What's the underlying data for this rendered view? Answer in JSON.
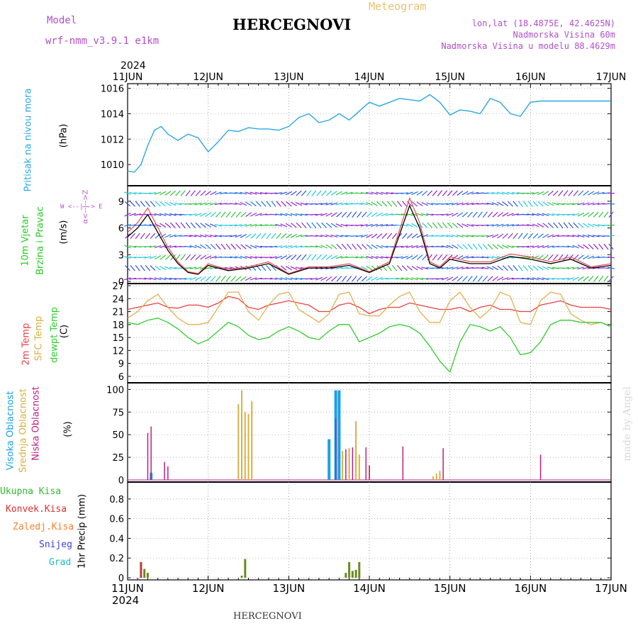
{
  "header": {
    "model_label": "Model",
    "model_name": "wrf-nmm_v3.9.1  e1km",
    "title": "HERCEGNOVI",
    "product": "Meteogram",
    "lonlat": "lon,lat (18.4875E, 42.4625N)",
    "elevation": "Nadmorska Visina 60m",
    "model_elevation": "Nadmorska Visina u modelu 88.4629m",
    "year_top": "2024",
    "year_bottom": "2024",
    "footer": "HERCEGNOVI",
    "credit": "made by Angel"
  },
  "axis": {
    "date_labels": [
      "11JUN",
      "12JUN",
      "13JUN",
      "14JUN",
      "15JUN",
      "16JUN",
      "17JUN"
    ]
  },
  "colors": {
    "pressure": "#2aa8e0",
    "wind_label": "#22cc22",
    "dir_label": "#c050d0",
    "temp2m": "#e84040",
    "sfc": "#e0b050",
    "dew": "#30cc30",
    "high_cloud": "#1aa0e8",
    "mid_cloud": "#d8b040",
    "low_cloud": "#c02080",
    "total_precip": "#30bb30",
    "conv_precip": "#e03030",
    "grid_precip": "#ff8030",
    "snow": "#4040e0",
    "hail": "#20c0c0"
  },
  "panels": {
    "pressure": {
      "label": "Pritisak na nivou mora",
      "unit": "(hPa)"
    },
    "wind": {
      "label1": "10m Vjetar",
      "label2": "Brzina i Pravac",
      "unit": "(m/s)",
      "compass_vertical": "α<--|-->Z",
      "compass_horizontal": "W <--|--> E"
    },
    "temp": {
      "label1": "2m Temp",
      "label2": "SFC Temp",
      "label3": "dewpt Temp",
      "unit": "(C)"
    },
    "cloud": {
      "label1": "Visoka Oblacnost",
      "label2": "Srednja Oblacnost",
      "label3": "Niska Oblacnost",
      "unit": "(%)"
    },
    "precip": {
      "label": "1hr Precip (mm)",
      "legend": [
        "Ukupna Kisa",
        "Konvek.Kisa",
        "Zaledj.Kisa",
        "Snijeg",
        "Grad"
      ]
    }
  },
  "chart_data": [
    {
      "type": "line",
      "name": "pressure",
      "x_unit": "hours since 11JUN 00",
      "ylim": [
        1008.5,
        1016.2
      ],
      "yticks": [
        "1010",
        "1012",
        "1014",
        "1016"
      ],
      "x": [
        0,
        2,
        4,
        6,
        8,
        10,
        12,
        15,
        18,
        21,
        24,
        27,
        30,
        33,
        36,
        39,
        42,
        45,
        48,
        51,
        54,
        57,
        60,
        63,
        66,
        69,
        72,
        75,
        78,
        81,
        84,
        87,
        90,
        93,
        96,
        99,
        102,
        105,
        108,
        111,
        114,
        117,
        120,
        123,
        126,
        129,
        132,
        135,
        138,
        141,
        144
      ],
      "values": [
        1009.5,
        1009.4,
        1010.0,
        1011.5,
        1012.7,
        1013.0,
        1012.4,
        1011.9,
        1012.4,
        1012.1,
        1011.0,
        1011.8,
        1012.7,
        1012.6,
        1012.9,
        1012.8,
        1012.8,
        1012.7,
        1013.0,
        1013.7,
        1014.0,
        1013.3,
        1013.5,
        1014.0,
        1013.5,
        1014.2,
        1014.9,
        1014.6,
        1014.9,
        1015.2,
        1015.1,
        1015.0,
        1015.5,
        1014.9,
        1013.9,
        1014.3,
        1014.2,
        1014.0,
        1015.2,
        1014.9,
        1014.0,
        1013.8,
        1014.9,
        1015.0,
        1015.0,
        1015.0,
        1015.0,
        1015.0,
        1015.0,
        1015.0,
        1015.0
      ]
    },
    {
      "type": "line",
      "name": "wind",
      "ylim": [
        0,
        10.5
      ],
      "yticks": [
        "0",
        "3",
        "6",
        "9"
      ],
      "series": [
        {
          "values_x": [
            0,
            3,
            6,
            9,
            12,
            15,
            18,
            21,
            24,
            30,
            36,
            42,
            48,
            54,
            60,
            66,
            72,
            78,
            84,
            87,
            90,
            93,
            96,
            102,
            108,
            114,
            120,
            126,
            132,
            138,
            144
          ],
          "values": [
            5.0,
            6.0,
            7.5,
            5.5,
            3.5,
            2.0,
            1.0,
            0.8,
            1.8,
            1.2,
            1.5,
            2.0,
            0.8,
            1.5,
            1.5,
            1.8,
            1.0,
            2.0,
            8.5,
            6.0,
            2.0,
            1.5,
            2.5,
            2.0,
            2.0,
            2.8,
            2.5,
            2.0,
            2.5,
            1.5,
            1.8
          ]
        }
      ]
    },
    {
      "type": "line",
      "name": "temperature",
      "ylim": [
        5,
        27
      ],
      "yticks": [
        "6",
        "9",
        "12",
        "15",
        "18",
        "21",
        "24",
        "27"
      ],
      "x": [
        0,
        3,
        6,
        9,
        12,
        15,
        18,
        21,
        24,
        27,
        30,
        33,
        36,
        39,
        42,
        45,
        48,
        51,
        54,
        57,
        60,
        63,
        66,
        69,
        72,
        75,
        78,
        81,
        84,
        87,
        90,
        93,
        96,
        99,
        102,
        105,
        108,
        111,
        114,
        117,
        120,
        123,
        126,
        129,
        132,
        135,
        138,
        141,
        144
      ],
      "series": [
        {
          "name": "2m Temp",
          "values": [
            21.5,
            22.0,
            22.5,
            23.0,
            22.0,
            21.8,
            22.5,
            22.5,
            22.0,
            23.0,
            24.5,
            24.0,
            22.0,
            21.5,
            22.5,
            23.0,
            23.5,
            23.0,
            22.5,
            21.0,
            21.0,
            22.5,
            23.0,
            22.0,
            20.5,
            21.5,
            22.0,
            22.0,
            23.0,
            22.5,
            22.0,
            21.5,
            21.5,
            22.0,
            21.0,
            22.0,
            22.5,
            21.5,
            21.5,
            21.0,
            21.0,
            22.5,
            23.0,
            23.5,
            22.5,
            22.0,
            22.0,
            22.0,
            21.5
          ]
        },
        {
          "name": "SFC Temp",
          "values": [
            19.5,
            21.0,
            23.5,
            25.0,
            22.0,
            19.5,
            18.0,
            18.0,
            18.5,
            22.0,
            25.5,
            25.5,
            21.0,
            19.0,
            22.5,
            25.0,
            25.5,
            21.5,
            20.0,
            18.5,
            20.5,
            25.0,
            25.5,
            20.5,
            20.0,
            20.0,
            22.5,
            24.5,
            25.5,
            21.0,
            18.5,
            18.5,
            23.5,
            25.5,
            22.0,
            19.5,
            21.5,
            25.5,
            24.5,
            18.5,
            18.0,
            23.5,
            25.5,
            25.0,
            20.5,
            19.0,
            18.0,
            18.5,
            17.5
          ]
        },
        {
          "name": "dewpt Temp",
          "values": [
            18.5,
            18.0,
            19.0,
            19.5,
            18.5,
            17.0,
            15.0,
            13.5,
            14.5,
            16.5,
            18.5,
            17.5,
            15.5,
            14.5,
            15.0,
            16.5,
            17.5,
            16.5,
            15.0,
            14.5,
            16.5,
            18.0,
            18.0,
            14.0,
            15.0,
            16.0,
            17.5,
            18.0,
            17.5,
            16.0,
            13.0,
            9.5,
            7.0,
            14.0,
            18.0,
            17.5,
            16.5,
            17.5,
            15.0,
            11.0,
            11.5,
            14.0,
            18.0,
            19.0,
            19.0,
            18.5,
            18.5,
            18.5,
            17.5
          ]
        }
      ]
    },
    {
      "type": "bar",
      "name": "cloud",
      "ylim": [
        0,
        105
      ],
      "yticks": [
        "0",
        "25",
        "50",
        "75",
        "100"
      ],
      "series": [
        {
          "name": "Visoka Oblacnost",
          "x": [
            7,
            60,
            62,
            63
          ],
          "values": [
            8,
            45,
            99,
            99
          ]
        },
        {
          "name": "Srednja Oblacnost",
          "x": [
            33,
            34,
            35,
            36,
            37,
            64,
            66,
            68,
            69,
            72,
            91,
            92,
            93
          ],
          "values": [
            84,
            99,
            75,
            73,
            87,
            32,
            35,
            65,
            28,
            16,
            4,
            7,
            10
          ]
        },
        {
          "name": "Niska Oblacnost",
          "x": [
            6,
            7,
            11,
            12,
            62,
            65,
            67,
            71,
            72,
            82,
            94,
            123
          ],
          "values": [
            52,
            59,
            20,
            15,
            68,
            34,
            36,
            36,
            16,
            37,
            35,
            28
          ]
        }
      ]
    },
    {
      "type": "bar",
      "name": "precip",
      "ylim": [
        0,
        0.95
      ],
      "yticks": [
        "0",
        "0.2",
        "0.4",
        "0.6",
        "0.8"
      ],
      "series": [
        {
          "name": "Ukupna Kisa",
          "x": [
            4,
            5,
            6,
            34,
            35,
            65,
            66,
            67,
            68,
            69
          ],
          "values": [
            0.16,
            0.09,
            0.05,
            0.02,
            0.19,
            0.05,
            0.16,
            0.07,
            0.08,
            0.16
          ]
        },
        {
          "name": "Konvek.Kisa",
          "x": [
            4
          ],
          "values": [
            0.16
          ]
        }
      ]
    }
  ]
}
